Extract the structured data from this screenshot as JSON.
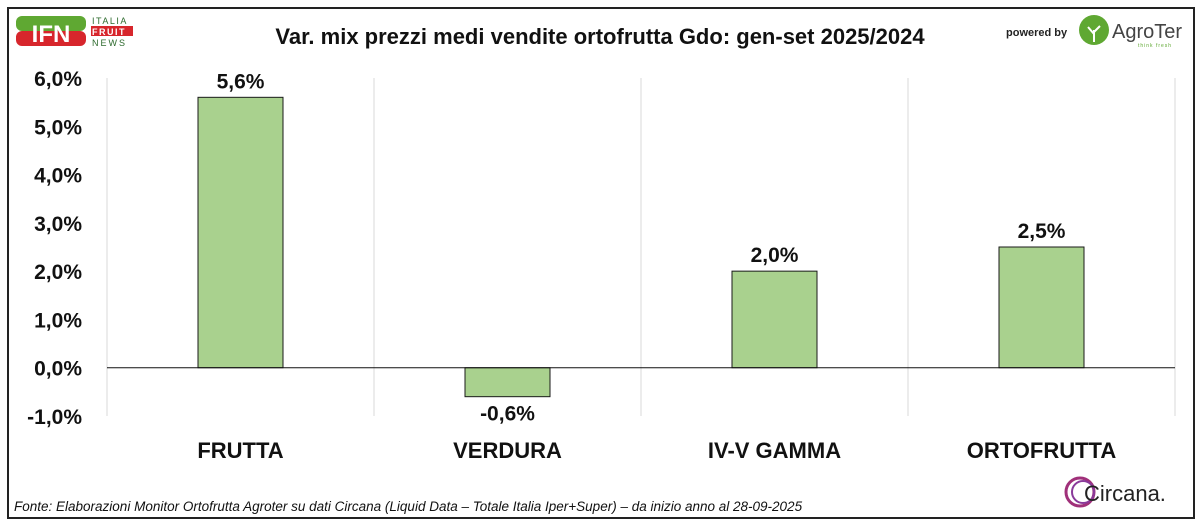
{
  "header": {
    "title": "Var. mix prezzi medi vendite ortofrutta Gdo: gen-set 2025/2024",
    "powered_by": "powered by",
    "logo_left": "IFN ITALIA FRUIT NEWS",
    "logo_right": "AgroTer think fresh"
  },
  "footer": {
    "source": "Fonte: Elaborazioni Monitor Ortofrutta Agroter su dati Circana (Liquid Data – Totale Italia Iper+Super) –  da inizio anno al 28-09-2025",
    "logo": "Circana."
  },
  "colors": {
    "bar": "#a9d18e",
    "bar_border": "#1a1a1a",
    "brand_green": "#5fa832",
    "brand_red": "#d7262c"
  },
  "chart_data": {
    "type": "bar",
    "title": "Var. mix prezzi medi vendite ortofrutta Gdo: gen-set 2025/2024",
    "categories": [
      "FRUTTA",
      "VERDURA",
      "IV-V GAMMA",
      "ORTOFRUTTA"
    ],
    "values": [
      5.6,
      -0.6,
      2.0,
      2.5
    ],
    "data_labels": [
      "5,6%",
      "-0,6%",
      "2,0%",
      "2,5%"
    ],
    "yticks": [
      "-1,0%",
      "0,0%",
      "1,0%",
      "2,0%",
      "3,0%",
      "4,0%",
      "5,0%",
      "6,0%"
    ],
    "ylim": [
      -1,
      6
    ],
    "unit": "%",
    "grid": "vertical",
    "legend": "none"
  }
}
